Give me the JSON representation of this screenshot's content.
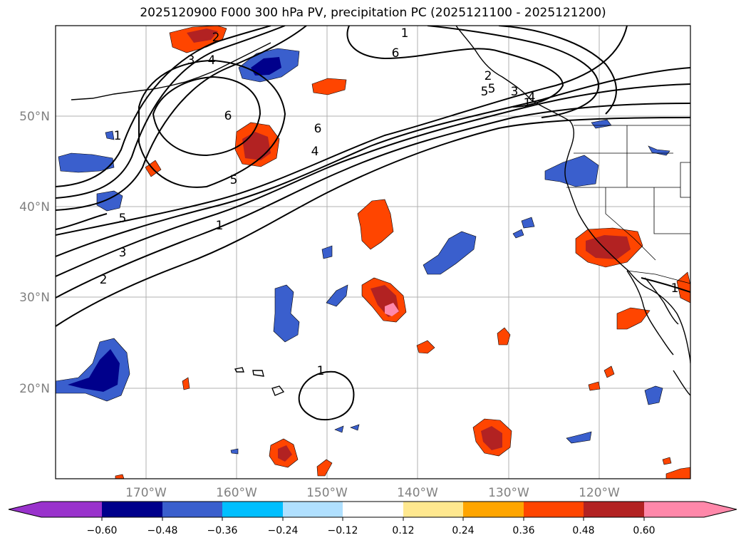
{
  "title": "2025120900 F000 300 hPa PV, precipitation PC (2025121100 - 2025121200)",
  "map": {
    "lon_range": [
      -180,
      -110
    ],
    "lat_range": [
      10,
      60
    ],
    "lat_labels": [
      "20°N",
      "30°N",
      "40°N",
      "50°N"
    ],
    "lon_labels": [
      "170°W",
      "160°W",
      "150°W",
      "140°W",
      "130°W",
      "120°W"
    ],
    "grid": true
  },
  "colorbar": {
    "extend": "both",
    "tick_labels": [
      "−0.60",
      "−0.48",
      "−0.36",
      "−0.24",
      "−0.12",
      "0.12",
      "0.24",
      "0.36",
      "0.48",
      "0.60"
    ],
    "colors": [
      "#9932cc",
      "#00008b",
      "#3a5fcd",
      "#00bfff",
      "#b0e0ff",
      "#ffffff",
      "#ffe88f",
      "#ffa500",
      "#ff4500",
      "#b22222",
      "#ff88aa"
    ]
  },
  "pv_contour_labels": [
    "1",
    "2",
    "3",
    "4",
    "5",
    "6",
    "1",
    "2",
    "3",
    "4",
    "5",
    "6",
    "1",
    "2",
    "3",
    "4",
    "5",
    "6",
    "1",
    "1",
    "1",
    "5"
  ]
}
